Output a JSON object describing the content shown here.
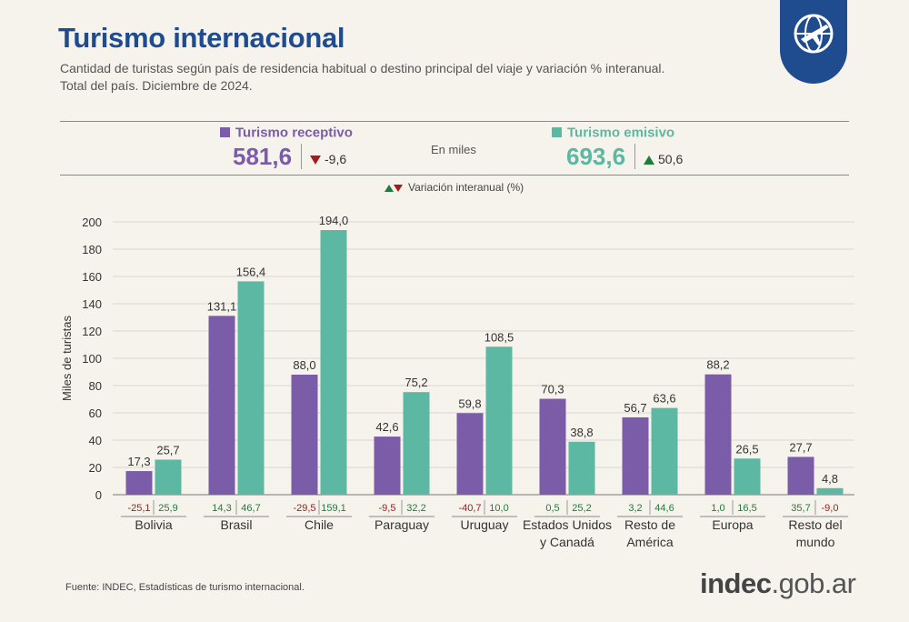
{
  "header": {
    "title": "Turismo internacional",
    "subtitle_line1": "Cantidad de turistas según país de residencia habitual o destino principal del viaje y variación % interanual.",
    "subtitle_line2": "Total del país. Diciembre de 2024."
  },
  "summary": {
    "receptivo": {
      "label": "Turismo receptivo",
      "value": "581,6",
      "variation": "-9,6",
      "color": "#7b5ca8"
    },
    "emisivo": {
      "label": "Turismo emisivo",
      "value": "693,6",
      "variation": "50,6",
      "color": "#5cb8a2"
    },
    "unit_note": "En miles",
    "variation_legend": "Variación interanual (%)"
  },
  "chart_data": {
    "type": "bar",
    "ylabel": "Miles de turistas",
    "ylim": [
      0,
      200
    ],
    "yticks": [
      0,
      20,
      40,
      60,
      80,
      100,
      120,
      140,
      160,
      180,
      200
    ],
    "categories": [
      [
        "Bolivia"
      ],
      [
        "Brasil"
      ],
      [
        "Chile"
      ],
      [
        "Paraguay"
      ],
      [
        "Uruguay"
      ],
      [
        "Estados Unidos",
        "y Canadá"
      ],
      [
        "Resto de",
        "América"
      ],
      [
        "Europa"
      ],
      [
        "Resto del",
        "mundo"
      ]
    ],
    "series": [
      {
        "name": "Turismo receptivo",
        "color": "#7b5ca8",
        "values": [
          17.3,
          131.1,
          88.0,
          42.6,
          59.8,
          70.3,
          56.7,
          88.2,
          27.7
        ],
        "labels": [
          "17,3",
          "131,1",
          "88,0",
          "42,6",
          "59,8",
          "70,3",
          "56,7",
          "88,2",
          "27,7"
        ],
        "variation": [
          "-25,1",
          "14,3",
          "-29,5",
          "-9,5",
          "-40,7",
          "0,5",
          "3,2",
          "1,0",
          "35,7"
        ]
      },
      {
        "name": "Turismo emisivo",
        "color": "#5cb8a2",
        "values": [
          25.7,
          156.4,
          194.0,
          75.2,
          108.5,
          38.8,
          63.6,
          26.5,
          4.8
        ],
        "labels": [
          "25,7",
          "156,4",
          "194,0",
          "75,2",
          "108,5",
          "38,8",
          "63,6",
          "26,5",
          "4,8"
        ],
        "variation": [
          "25,9",
          "46,7",
          "159,1",
          "32,2",
          "10,0",
          "25,2",
          "44,6",
          "16,5",
          "-9,0"
        ]
      }
    ],
    "grid": true,
    "legend": "top"
  },
  "footer": {
    "source": "Fuente: INDEC, Estadísticas de turismo internacional.",
    "logo_prefix": "indec",
    "logo_suffix": ".gob.ar"
  },
  "colors": {
    "title": "#1f4b8f",
    "negative": "#a31d1d",
    "positive": "#1e7d3a"
  },
  "icons": {
    "badge": "globe-airplane-icon"
  }
}
